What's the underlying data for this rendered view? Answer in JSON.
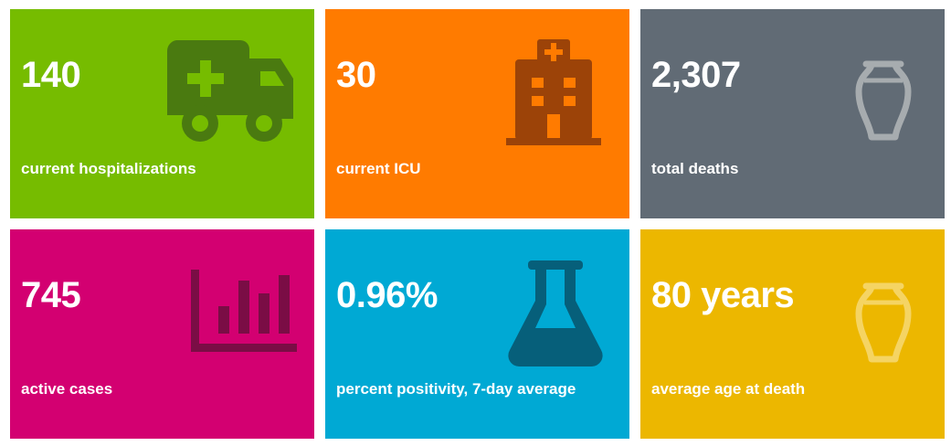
{
  "tiles": [
    {
      "value": "140",
      "label": "current hospitalizations",
      "color": "#76bc00",
      "icon": "ambulance-icon",
      "icon_color": "#4a7a10"
    },
    {
      "value": "30",
      "label": "current ICU",
      "color": "#ff7b00",
      "icon": "hospital-icon",
      "icon_color": "#9c4308"
    },
    {
      "value": "2,307",
      "label": "total deaths",
      "color": "#616b75",
      "icon": "urn-icon",
      "icon_color": "#a7acaf"
    },
    {
      "value": "745",
      "label": "active cases",
      "color": "#d30071",
      "icon": "bar-chart-icon",
      "icon_color": "#7a0d45"
    },
    {
      "value": "0.96%",
      "label": "percent positivity, 7-day average",
      "color": "#00a9d4",
      "icon": "flask-icon",
      "icon_color": "#065f7a"
    },
    {
      "value": "80 years",
      "label": "average age at death",
      "color": "#ecb700",
      "icon": "urn-icon",
      "icon_color": "#f5d463"
    }
  ]
}
